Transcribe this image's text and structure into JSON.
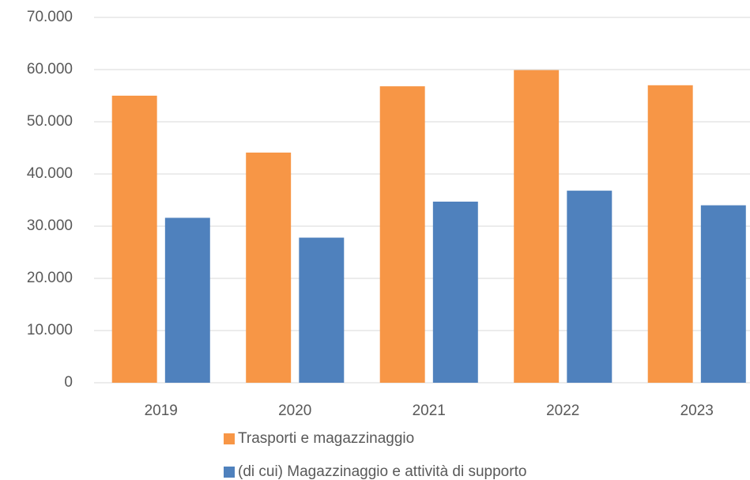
{
  "chart_data": {
    "type": "bar",
    "categories": [
      "2019",
      "2020",
      "2021",
      "2022",
      "2023"
    ],
    "series": [
      {
        "name": "Trasporti e magazzinaggio",
        "color": "#f79646",
        "values": [
          55000,
          44100,
          56800,
          59900,
          57000
        ]
      },
      {
        "name": "(di cui) Magazzinaggio e attività di supporto",
        "color": "#4f81bd",
        "values": [
          31600,
          27800,
          34700,
          36800,
          34000
        ]
      }
    ],
    "ylim": [
      0,
      70000
    ],
    "yticks": [
      0,
      {
        "value": 10000,
        "label": "10.000"
      },
      {
        "value": 20000,
        "label": "20.000"
      },
      {
        "value": 30000,
        "label": "30.000"
      },
      {
        "value": 40000,
        "label": "40.000"
      },
      {
        "value": 50000,
        "label": "50.000"
      },
      {
        "value": 60000,
        "label": "60.000"
      },
      {
        "value": 70000,
        "label": "70.000"
      }
    ],
    "grid": true
  }
}
